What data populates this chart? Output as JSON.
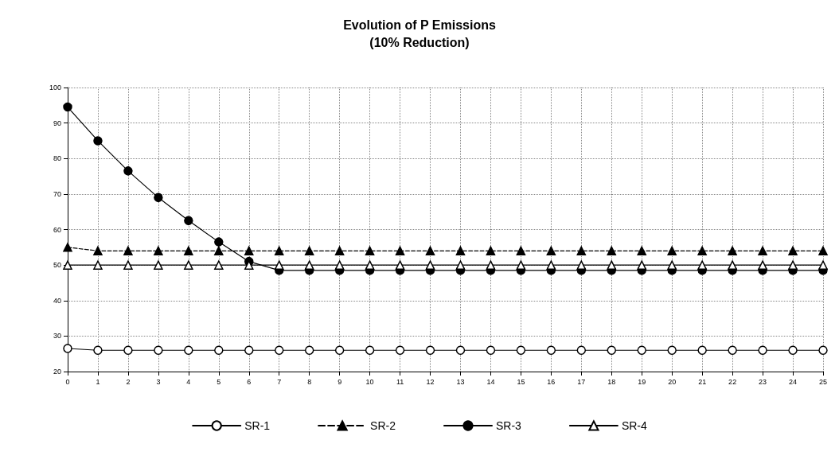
{
  "chart_data": {
    "type": "line",
    "title": "Evolution of P Emissions",
    "subtitle": "(10% Reduction)",
    "x": [
      0,
      1,
      2,
      3,
      4,
      5,
      6,
      7,
      8,
      9,
      10,
      11,
      12,
      13,
      14,
      15,
      16,
      17,
      18,
      19,
      20,
      21,
      22,
      23,
      24,
      25
    ],
    "xlim": [
      0,
      25
    ],
    "xticks": [
      0,
      1,
      2,
      3,
      4,
      5,
      6,
      7,
      8,
      9,
      10,
      11,
      12,
      13,
      14,
      15,
      16,
      17,
      18,
      19,
      20,
      21,
      22,
      23,
      24,
      25
    ],
    "ylim": [
      20,
      100
    ],
    "yticks": [
      20,
      30,
      40,
      50,
      60,
      70,
      80,
      90,
      100
    ],
    "grid": true,
    "legend": "bottom",
    "series": [
      {
        "name": "SR-1",
        "color": "#000000",
        "marker": "circle",
        "line_style": "solid",
        "values": [
          26.5,
          26,
          26,
          26,
          26,
          26,
          26,
          26,
          26,
          26,
          26,
          26,
          26,
          26,
          26,
          26,
          26,
          26,
          26,
          26,
          26,
          26,
          26,
          26,
          26,
          26
        ]
      },
      {
        "name": "SR-2",
        "color": "#000000",
        "marker": "triangle",
        "line_style": "dashed",
        "values": [
          55,
          54,
          54,
          54,
          54,
          54,
          54,
          54,
          54,
          54,
          54,
          54,
          54,
          54,
          54,
          54,
          54,
          54,
          54,
          54,
          54,
          54,
          54,
          54,
          54,
          54
        ]
      },
      {
        "name": "SR-3",
        "color": "#000000",
        "marker": "circle",
        "line_style": "solid",
        "values": [
          94.5,
          85,
          76.5,
          69,
          62.5,
          56.5,
          51,
          48.5,
          48.5,
          48.5,
          48.5,
          48.5,
          48.5,
          48.5,
          48.5,
          48.5,
          48.5,
          48.5,
          48.5,
          48.5,
          48.5,
          48.5,
          48.5,
          48.5,
          48.5,
          48.5
        ]
      },
      {
        "name": "SR-4",
        "color": "#000000",
        "marker": "triangle",
        "line_style": "solid",
        "values": [
          50,
          50,
          50,
          50,
          50,
          50,
          50,
          50,
          50,
          50,
          50,
          50,
          50,
          50,
          50,
          50,
          50,
          50,
          50,
          50,
          50,
          50,
          50,
          50,
          50,
          50
        ]
      }
    ]
  }
}
